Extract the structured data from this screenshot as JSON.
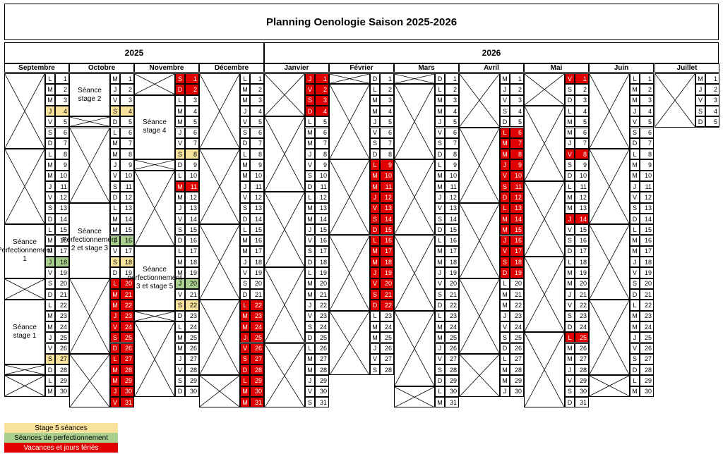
{
  "title": "Planning Oenologie Saison 2025-2026",
  "years": [
    "2025",
    "2026"
  ],
  "colors": {
    "stage": "#f9e29c",
    "perf": "#a9d08e",
    "holiday": "#e00000"
  },
  "legend": [
    {
      "label": "Stage 5 séances",
      "type": "stage"
    },
    {
      "label": "Séances de perfectionnement",
      "type": "perf"
    },
    {
      "label": "Vacances et jours fériés",
      "type": "holiday"
    }
  ],
  "months": [
    {
      "name": "Septembre",
      "year": "2025",
      "startDow": 0,
      "days": 30,
      "stage": [
        4,
        27
      ],
      "perf": [
        18
      ],
      "holiday": [],
      "sessions": [
        {
          "label": "Séance Perfectionnement 1",
          "from": 15,
          "to": 19
        },
        {
          "label": "Séance stage 1",
          "from": 22,
          "to": 27
        }
      ]
    },
    {
      "name": "Octobre",
      "year": "2025",
      "startDow": 2,
      "days": 31,
      "stage": [
        4,
        18
      ],
      "perf": [
        16
      ],
      "holiday": [
        20,
        21,
        22,
        23,
        24,
        25,
        26,
        27,
        28,
        29,
        30,
        31
      ],
      "sessions": [
        {
          "label": "Séance stage 2",
          "from": 1,
          "to": 4
        },
        {
          "label": "Séance Perfectionnement 2 et stage 3",
          "from": 13,
          "to": 19
        }
      ]
    },
    {
      "name": "Novembre",
      "year": "2025",
      "startDow": 5,
      "days": 30,
      "stage": [
        8,
        22
      ],
      "perf": [
        20
      ],
      "holiday": [
        1,
        2,
        11
      ],
      "sessions": [
        {
          "label": "Séance stage 4",
          "from": 3,
          "to": 8
        },
        {
          "label": "Séance perfectionnement 3 et stage 5",
          "from": 17,
          "to": 22
        }
      ]
    },
    {
      "name": "Décembre",
      "year": "2025",
      "startDow": 0,
      "days": 31,
      "stage": [],
      "perf": [],
      "holiday": [
        22,
        23,
        24,
        25,
        26,
        27,
        28,
        29,
        30,
        31
      ],
      "sessions": []
    },
    {
      "name": "Janvier",
      "year": "2026",
      "startDow": 3,
      "days": 31,
      "stage": [],
      "perf": [],
      "holiday": [
        1,
        2,
        3,
        4
      ],
      "sessions": []
    },
    {
      "name": "Février",
      "year": "2026",
      "startDow": 6,
      "days": 28,
      "stage": [],
      "perf": [],
      "holiday": [
        9,
        10,
        11,
        12,
        13,
        14,
        15,
        16,
        17,
        18,
        19,
        20,
        21,
        22
      ],
      "sessions": []
    },
    {
      "name": "Mars",
      "year": "2026",
      "startDow": 6,
      "days": 31,
      "stage": [],
      "perf": [],
      "holiday": [],
      "sessions": []
    },
    {
      "name": "Avril",
      "year": "2026",
      "startDow": 2,
      "days": 30,
      "stage": [],
      "perf": [],
      "holiday": [
        6,
        7,
        8,
        9,
        10,
        11,
        12,
        13,
        14,
        15,
        16,
        17,
        18,
        19
      ],
      "sessions": []
    },
    {
      "name": "Mai",
      "year": "2026",
      "startDow": 4,
      "days": 31,
      "stage": [],
      "perf": [],
      "holiday": [
        1,
        8,
        14,
        25
      ],
      "sessions": []
    },
    {
      "name": "Juin",
      "year": "2026",
      "startDow": 0,
      "days": 30,
      "stage": [],
      "perf": [],
      "holiday": [],
      "sessions": []
    },
    {
      "name": "Juillet",
      "year": "2026",
      "startDow": 2,
      "days": 5,
      "stage": [],
      "perf": [],
      "holiday": [],
      "sessions": []
    }
  ],
  "day_letters": [
    "L",
    "M",
    "M",
    "J",
    "V",
    "S",
    "D"
  ]
}
